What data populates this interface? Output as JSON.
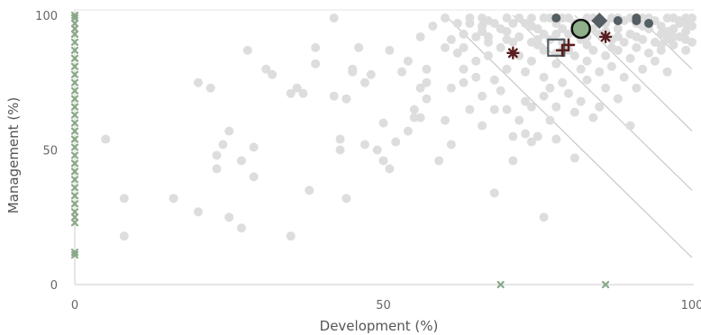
{
  "chart_data": {
    "type": "scatter",
    "xlabel": "Development (%)",
    "ylabel": "Management (%)",
    "xlim": [
      0,
      100
    ],
    "ylim": [
      0,
      100
    ],
    "x_ticks": [
      0,
      50,
      100
    ],
    "y_ticks": [
      0,
      50,
      100
    ],
    "grid": false,
    "colors": {
      "background_points": "#dddddd",
      "zero_markers": "#8aa888",
      "diagonal_lines": "#c8c8c8",
      "dark_points": "#555e63",
      "highlight_circle": "#8fb08a",
      "asterisk_markers": "#5a1e1e"
    },
    "diagonal_lines": [
      {
        "x0": 60,
        "y0": 100,
        "x1": 100,
        "y1": 10
      },
      {
        "x0": 71,
        "y0": 100,
        "x1": 100,
        "y1": 35
      },
      {
        "x0": 81,
        "y0": 100,
        "x1": 100,
        "y1": 57
      },
      {
        "x0": 91,
        "y0": 100,
        "x1": 100,
        "y1": 80
      }
    ],
    "series": [
      {
        "marker": "circle",
        "color": "#dddddd",
        "points": [
          [
            5,
            54
          ],
          [
            8,
            32
          ],
          [
            8,
            18
          ],
          [
            16,
            32
          ],
          [
            20,
            75
          ],
          [
            20,
            27
          ],
          [
            22,
            73
          ],
          [
            23,
            48
          ],
          [
            23,
            43
          ],
          [
            24,
            52
          ],
          [
            25,
            57
          ],
          [
            25,
            25
          ],
          [
            27,
            46
          ],
          [
            27,
            21
          ],
          [
            28,
            87
          ],
          [
            29,
            51
          ],
          [
            29,
            40
          ],
          [
            31,
            80
          ],
          [
            32,
            78
          ],
          [
            35,
            18
          ],
          [
            35,
            71
          ],
          [
            36,
            73
          ],
          [
            37,
            71
          ],
          [
            38,
            35
          ],
          [
            39,
            88
          ],
          [
            39,
            82
          ],
          [
            42,
            99
          ],
          [
            42,
            70
          ],
          [
            43,
            54
          ],
          [
            43,
            50
          ],
          [
            44,
            32
          ],
          [
            44,
            69
          ],
          [
            45,
            79
          ],
          [
            45,
            80
          ],
          [
            46,
            88
          ],
          [
            47,
            52
          ],
          [
            47,
            75
          ],
          [
            48,
            78
          ],
          [
            49,
            50
          ],
          [
            50,
            46
          ],
          [
            50,
            60
          ],
          [
            51,
            87
          ],
          [
            51,
            43
          ],
          [
            52,
            53
          ],
          [
            53,
            79
          ],
          [
            54,
            57
          ],
          [
            54,
            83
          ],
          [
            55,
            65
          ],
          [
            55,
            62
          ],
          [
            56,
            73
          ],
          [
            56,
            62
          ],
          [
            56,
            92
          ],
          [
            57,
            80
          ],
          [
            57,
            69
          ],
          [
            57,
            75
          ],
          [
            58,
            96
          ],
          [
            59,
            46
          ],
          [
            60,
            99
          ],
          [
            60,
            88
          ],
          [
            60,
            61
          ],
          [
            61,
            91
          ],
          [
            61,
            73
          ],
          [
            61,
            52
          ],
          [
            62,
            86
          ],
          [
            63,
            88
          ],
          [
            63,
            75
          ],
          [
            63,
            80
          ],
          [
            64,
            65
          ],
          [
            64,
            97
          ],
          [
            65,
            92
          ],
          [
            65,
            83
          ],
          [
            65,
            77
          ],
          [
            66,
            94
          ],
          [
            66,
            70
          ],
          [
            66,
            59
          ],
          [
            67,
            98
          ],
          [
            67,
            90
          ],
          [
            67,
            85
          ],
          [
            68,
            76
          ],
          [
            68,
            34
          ],
          [
            68,
            65
          ],
          [
            69,
            95
          ],
          [
            69,
            88
          ],
          [
            69,
            72
          ],
          [
            70,
            91
          ],
          [
            70,
            99
          ],
          [
            70,
            80
          ],
          [
            70,
            65
          ],
          [
            71,
            55
          ],
          [
            71,
            97
          ],
          [
            71,
            46
          ],
          [
            72,
            92
          ],
          [
            72,
            85
          ],
          [
            72,
            61
          ],
          [
            73,
            97
          ],
          [
            73,
            79
          ],
          [
            73,
            68
          ],
          [
            73,
            56
          ],
          [
            74,
            99
          ],
          [
            74,
            90
          ],
          [
            74,
            83
          ],
          [
            74,
            66
          ],
          [
            74,
            53
          ],
          [
            75,
            95
          ],
          [
            75,
            89
          ],
          [
            75,
            55
          ],
          [
            76,
            93
          ],
          [
            76,
            87
          ],
          [
            76,
            77
          ],
          [
            76,
            70
          ],
          [
            76,
            25
          ],
          [
            77,
            99
          ],
          [
            77,
            91
          ],
          [
            77,
            73
          ],
          [
            77,
            61
          ],
          [
            78,
            97
          ],
          [
            78,
            86
          ],
          [
            78,
            82
          ],
          [
            78,
            66
          ],
          [
            78,
            54
          ],
          [
            79,
            95
          ],
          [
            79,
            90
          ],
          [
            79,
            75
          ],
          [
            80,
            99
          ],
          [
            80,
            93
          ],
          [
            80,
            87
          ],
          [
            80,
            71
          ],
          [
            81,
            97
          ],
          [
            81,
            85
          ],
          [
            81,
            64
          ],
          [
            81,
            47
          ],
          [
            82,
            91
          ],
          [
            82,
            80
          ],
          [
            82,
            68
          ],
          [
            83,
            99
          ],
          [
            83,
            89
          ],
          [
            83,
            76
          ],
          [
            83,
            83
          ],
          [
            84,
            95
          ],
          [
            84,
            87
          ],
          [
            84,
            62
          ],
          [
            85,
            93
          ],
          [
            85,
            79
          ],
          [
            85,
            66
          ],
          [
            86,
            97
          ],
          [
            86,
            85
          ],
          [
            86,
            73
          ],
          [
            87,
            99
          ],
          [
            87,
            91
          ],
          [
            87,
            81
          ],
          [
            88,
            95
          ],
          [
            88,
            87
          ],
          [
            88,
            69
          ],
          [
            89,
            98
          ],
          [
            89,
            90
          ],
          [
            89,
            77
          ],
          [
            90,
            93
          ],
          [
            90,
            84
          ],
          [
            90,
            59
          ],
          [
            91,
            97
          ],
          [
            91,
            88
          ],
          [
            91,
            73
          ],
          [
            92,
            99
          ],
          [
            92,
            91
          ],
          [
            92,
            80
          ],
          [
            93,
            95
          ],
          [
            93,
            86
          ],
          [
            94,
            98
          ],
          [
            94,
            90
          ],
          [
            94,
            83
          ],
          [
            95,
            93
          ],
          [
            95,
            87
          ],
          [
            96,
            99
          ],
          [
            96,
            91
          ],
          [
            96,
            79
          ],
          [
            97,
            95
          ],
          [
            97,
            89
          ],
          [
            98,
            97
          ],
          [
            98,
            92
          ],
          [
            99,
            99
          ],
          [
            99,
            94
          ],
          [
            99,
            87
          ],
          [
            100,
            96
          ],
          [
            100,
            90
          ],
          [
            64,
            99
          ],
          [
            66,
            99
          ],
          [
            68,
            97
          ],
          [
            72,
            99
          ],
          [
            76,
            99
          ],
          [
            79,
            99
          ],
          [
            84,
            99
          ],
          [
            88,
            99
          ],
          [
            90,
            99
          ],
          [
            93,
            99
          ],
          [
            95,
            96
          ],
          [
            97,
            99
          ],
          [
            99,
            91
          ],
          [
            62,
            97
          ],
          [
            66,
            96
          ],
          [
            70,
            94
          ],
          [
            74,
            96
          ],
          [
            78,
            93
          ],
          [
            82,
            95
          ],
          [
            86,
            94
          ],
          [
            88,
            92
          ],
          [
            92,
            96
          ],
          [
            96,
            94
          ],
          [
            98,
            98
          ],
          [
            63,
            93
          ],
          [
            67,
            92
          ],
          [
            71,
            90
          ],
          [
            75,
            91
          ],
          [
            79,
            87
          ],
          [
            83,
            92
          ],
          [
            87,
            88
          ],
          [
            91,
            92
          ],
          [
            95,
            89
          ],
          [
            97,
            92
          ],
          [
            99,
            97
          ],
          [
            100,
            99
          ]
        ]
      },
      {
        "marker": "circle",
        "color": "#555e63",
        "points": [
          [
            78,
            99
          ],
          [
            88,
            98
          ],
          [
            91,
            99
          ],
          [
            93,
            97
          ],
          [
            91,
            98
          ]
        ]
      },
      {
        "marker": "x",
        "color": "#8aa888",
        "points": [
          [
            0,
            12
          ],
          [
            0,
            11
          ],
          [
            0,
            23
          ],
          [
            0,
            25
          ],
          [
            0,
            27
          ],
          [
            0,
            30
          ],
          [
            0,
            33
          ],
          [
            0,
            36
          ],
          [
            0,
            39
          ],
          [
            0,
            42
          ],
          [
            0,
            45
          ],
          [
            0,
            48
          ],
          [
            0,
            51
          ],
          [
            0,
            54
          ],
          [
            0,
            57
          ],
          [
            0,
            60
          ],
          [
            0,
            63
          ],
          [
            0,
            66
          ],
          [
            0,
            69
          ],
          [
            0,
            72
          ],
          [
            0,
            75
          ],
          [
            0,
            78
          ],
          [
            0,
            81
          ],
          [
            0,
            84
          ],
          [
            0,
            87
          ],
          [
            0,
            90
          ],
          [
            0,
            93
          ],
          [
            0,
            95
          ],
          [
            0,
            97
          ],
          [
            0,
            99
          ],
          [
            0,
            100
          ],
          [
            69,
            0
          ],
          [
            86,
            0
          ]
        ]
      },
      {
        "marker": "circle-highlight",
        "color": "#8fb08a",
        "points": [
          [
            82,
            95
          ]
        ]
      },
      {
        "marker": "diamond",
        "color": "#555e63",
        "points": [
          [
            85,
            98
          ]
        ]
      },
      {
        "marker": "square-outline",
        "color": "#555e63",
        "points": [
          [
            78,
            88
          ]
        ]
      },
      {
        "marker": "asterisk",
        "color": "#5a1e1e",
        "points": [
          [
            71,
            86
          ],
          [
            86,
            92
          ]
        ]
      },
      {
        "marker": "cross",
        "color": "#5a1e1e",
        "points": [
          [
            79,
            87
          ],
          [
            80,
            89
          ]
        ]
      }
    ]
  }
}
